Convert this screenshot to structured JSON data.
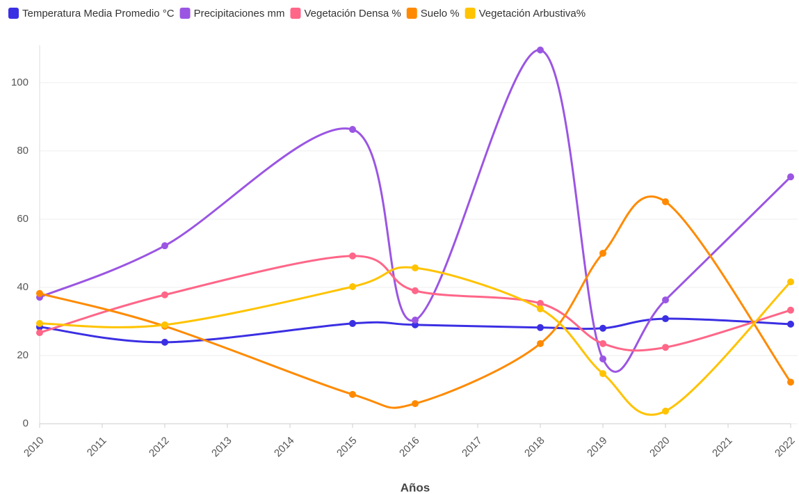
{
  "chart_data": {
    "type": "line",
    "x_label": "Años",
    "x": [
      2010,
      2012,
      2015,
      2016,
      2018,
      2019,
      2020,
      2022
    ],
    "series": [
      {
        "name": "Temperatura Media Promedio °C",
        "color": "#3b2fe3",
        "values": [
          28.4,
          23.9,
          29.4,
          29.0,
          28.2,
          28.0,
          30.8,
          29.2
        ]
      },
      {
        "name": "Precipitaciones mm",
        "color": "#9b55e3",
        "values": [
          37.1,
          52.2,
          86.3,
          30.4,
          109.6,
          19.0,
          36.3,
          72.4
        ]
      },
      {
        "name": "Vegetación Densa %",
        "color": "#ff6688",
        "values": [
          26.7,
          37.8,
          49.2,
          39.0,
          35.3,
          23.5,
          22.4,
          33.3
        ]
      },
      {
        "name": "Suelo %",
        "color": "#ff8a00",
        "values": [
          38.2,
          28.6,
          8.6,
          5.9,
          23.5,
          50.0,
          65.1,
          12.2
        ]
      },
      {
        "name": "Vegetación Arbustiva%",
        "color": "#ffc300",
        "values": [
          29.4,
          29.0,
          40.2,
          45.7,
          33.7,
          14.7,
          3.7,
          41.6
        ]
      }
    ],
    "xlim": [
      2010,
      2022
    ],
    "xticks": [
      2010,
      2011,
      2012,
      2013,
      2014,
      2015,
      2016,
      2017,
      2018,
      2019,
      2020,
      2021,
      2022
    ],
    "ylim": [
      0,
      111
    ],
    "yticks": [
      0,
      20,
      40,
      60,
      80,
      100
    ],
    "grid": true,
    "legend": "top"
  }
}
